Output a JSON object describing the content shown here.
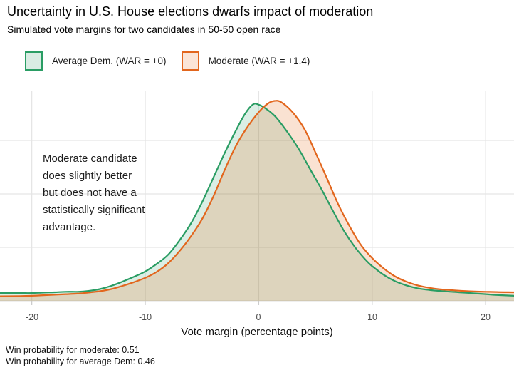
{
  "chart_data": {
    "type": "area",
    "title": "Uncertainty in U.S. House elections dwarfs impact of moderation",
    "subtitle": "Simulated vote margins for two candidates in 50-50 open race",
    "xlabel": "Vote margin (percentage points)",
    "ylabel": "",
    "x_range": [
      -22.8,
      22.5
    ],
    "x_ticks": [
      -20,
      -10,
      0,
      10,
      20
    ],
    "x_tick_labels": [
      "-20",
      "-10",
      "0",
      "10",
      "20"
    ],
    "y_gridlines": [
      0,
      0.02,
      0.04,
      0.06
    ],
    "grid": true,
    "legend_position": "top-left",
    "series": [
      {
        "name": "Average Dem. (WAR = +0)",
        "stroke": "#2a9d64",
        "fill": "rgba(42,157,100,0.17)",
        "swatch_fill": "#d9ece3",
        "peak_x": -0.5,
        "points": [
          [
            -22.8,
            0.0029
          ],
          [
            -21,
            0.0029
          ],
          [
            -20,
            0.0029
          ],
          [
            -19,
            0.0031
          ],
          [
            -18,
            0.0032
          ],
          [
            -17,
            0.0034
          ],
          [
            -16,
            0.0034
          ],
          [
            -15,
            0.0037
          ],
          [
            -14,
            0.0044
          ],
          [
            -13,
            0.0056
          ],
          [
            -12,
            0.0072
          ],
          [
            -11,
            0.009
          ],
          [
            -10,
            0.011
          ],
          [
            -9,
            0.0138
          ],
          [
            -8,
            0.0172
          ],
          [
            -7,
            0.0225
          ],
          [
            -6,
            0.0288
          ],
          [
            -5,
            0.0368
          ],
          [
            -4,
            0.046
          ],
          [
            -3,
            0.0553
          ],
          [
            -2,
            0.0638
          ],
          [
            -1.2,
            0.07
          ],
          [
            -0.5,
            0.0735
          ],
          [
            0,
            0.0734
          ],
          [
            0.7,
            0.0717
          ],
          [
            1.5,
            0.0688
          ],
          [
            2.5,
            0.0633
          ],
          [
            3.5,
            0.057
          ],
          [
            4.5,
            0.0495
          ],
          [
            5.5,
            0.042
          ],
          [
            6.5,
            0.034
          ],
          [
            7.5,
            0.0263
          ],
          [
            8.5,
            0.02
          ],
          [
            9.5,
            0.015
          ],
          [
            10,
            0.013
          ],
          [
            11,
            0.0098
          ],
          [
            12,
            0.0074
          ],
          [
            13,
            0.0058
          ],
          [
            14,
            0.0047
          ],
          [
            15,
            0.0041
          ],
          [
            16,
            0.0037
          ],
          [
            17,
            0.0034
          ],
          [
            18,
            0.0031
          ],
          [
            19,
            0.0028
          ],
          [
            20,
            0.0025
          ],
          [
            21,
            0.0022
          ],
          [
            22.5,
            0.0019
          ]
        ]
      },
      {
        "name": "Moderate (WAR = +1.4)",
        "stroke": "#e2661d",
        "fill": "rgba(230,112,30,0.20)",
        "swatch_fill": "#fbe5d7",
        "peak_x": 1.4,
        "points": [
          [
            -22.8,
            0.0017
          ],
          [
            -21,
            0.0018
          ],
          [
            -20,
            0.0019
          ],
          [
            -19,
            0.0021
          ],
          [
            -18,
            0.0023
          ],
          [
            -17,
            0.0025
          ],
          [
            -16,
            0.0027
          ],
          [
            -15,
            0.0031
          ],
          [
            -14,
            0.0036
          ],
          [
            -13,
            0.0044
          ],
          [
            -12,
            0.0056
          ],
          [
            -11,
            0.007
          ],
          [
            -10,
            0.0086
          ],
          [
            -9,
            0.0108
          ],
          [
            -8,
            0.014
          ],
          [
            -7,
            0.0185
          ],
          [
            -6,
            0.024
          ],
          [
            -5,
            0.0305
          ],
          [
            -4,
            0.039
          ],
          [
            -3,
            0.049
          ],
          [
            -2,
            0.058
          ],
          [
            -1,
            0.065
          ],
          [
            0,
            0.0706
          ],
          [
            0.8,
            0.0738
          ],
          [
            1.4,
            0.0748
          ],
          [
            2,
            0.0743
          ],
          [
            3,
            0.0705
          ],
          [
            4,
            0.0645
          ],
          [
            5,
            0.0555
          ],
          [
            6,
            0.046
          ],
          [
            7,
            0.0362
          ],
          [
            8,
            0.028
          ],
          [
            9,
            0.021
          ],
          [
            10,
            0.016
          ],
          [
            11,
            0.0122
          ],
          [
            12,
            0.0092
          ],
          [
            13,
            0.0072
          ],
          [
            14,
            0.0058
          ],
          [
            15,
            0.0049
          ],
          [
            16,
            0.0043
          ],
          [
            17,
            0.004
          ],
          [
            18,
            0.0037
          ],
          [
            19,
            0.0035
          ],
          [
            20,
            0.0034
          ],
          [
            21,
            0.0033
          ],
          [
            22.5,
            0.0032
          ]
        ]
      }
    ]
  },
  "annotation": {
    "text": "Moderate candidate\ndoes slightly better\nbut does not have a\n statistically significant\nadvantage."
  },
  "caption": {
    "line1": "Win probability for moderate: 0.51",
    "line2": "Win probability for average Dem: 0.46"
  },
  "colors": {
    "gridline": "#e5e5e5",
    "axis_tick": "#cccccc",
    "tick_label": "#4d4d4d"
  }
}
